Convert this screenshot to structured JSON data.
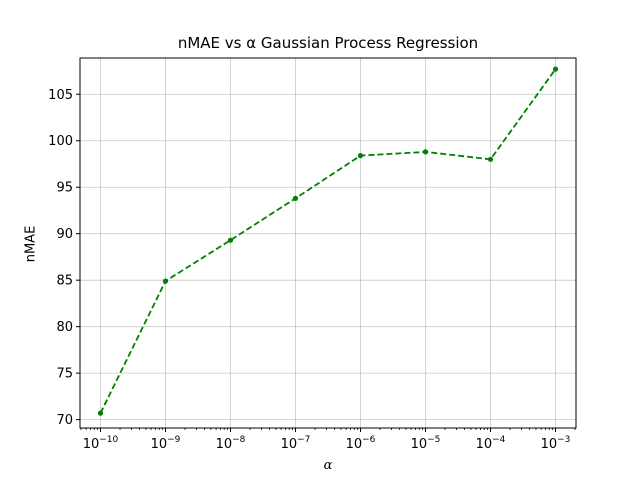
{
  "chart_data": {
    "type": "line",
    "title": "nMAE vs α Gaussian Process Regression",
    "xlabel": "α",
    "ylabel": "nMAE",
    "x_scale": "log",
    "x": [
      1e-10,
      1e-09,
      1e-08,
      1e-07,
      1e-06,
      1e-05,
      0.0001,
      0.001
    ],
    "x_tick_labels": [
      {
        "base": "10",
        "exp": "−10"
      },
      {
        "base": "10",
        "exp": "−9"
      },
      {
        "base": "10",
        "exp": "−8"
      },
      {
        "base": "10",
        "exp": "−7"
      },
      {
        "base": "10",
        "exp": "−6"
      },
      {
        "base": "10",
        "exp": "−5"
      },
      {
        "base": "10",
        "exp": "−4"
      },
      {
        "base": "10",
        "exp": "−3"
      }
    ],
    "y_ticks": [
      70,
      75,
      80,
      85,
      90,
      95,
      100,
      105
    ],
    "ylim": [
      69.1,
      108.9
    ],
    "series": [
      {
        "values": [
          70.7,
          84.9,
          89.3,
          93.8,
          98.4,
          98.8,
          98.0,
          107.7
        ],
        "color": "#008000",
        "line_style": "dashed",
        "marker": "circle"
      }
    ],
    "grid": true
  }
}
